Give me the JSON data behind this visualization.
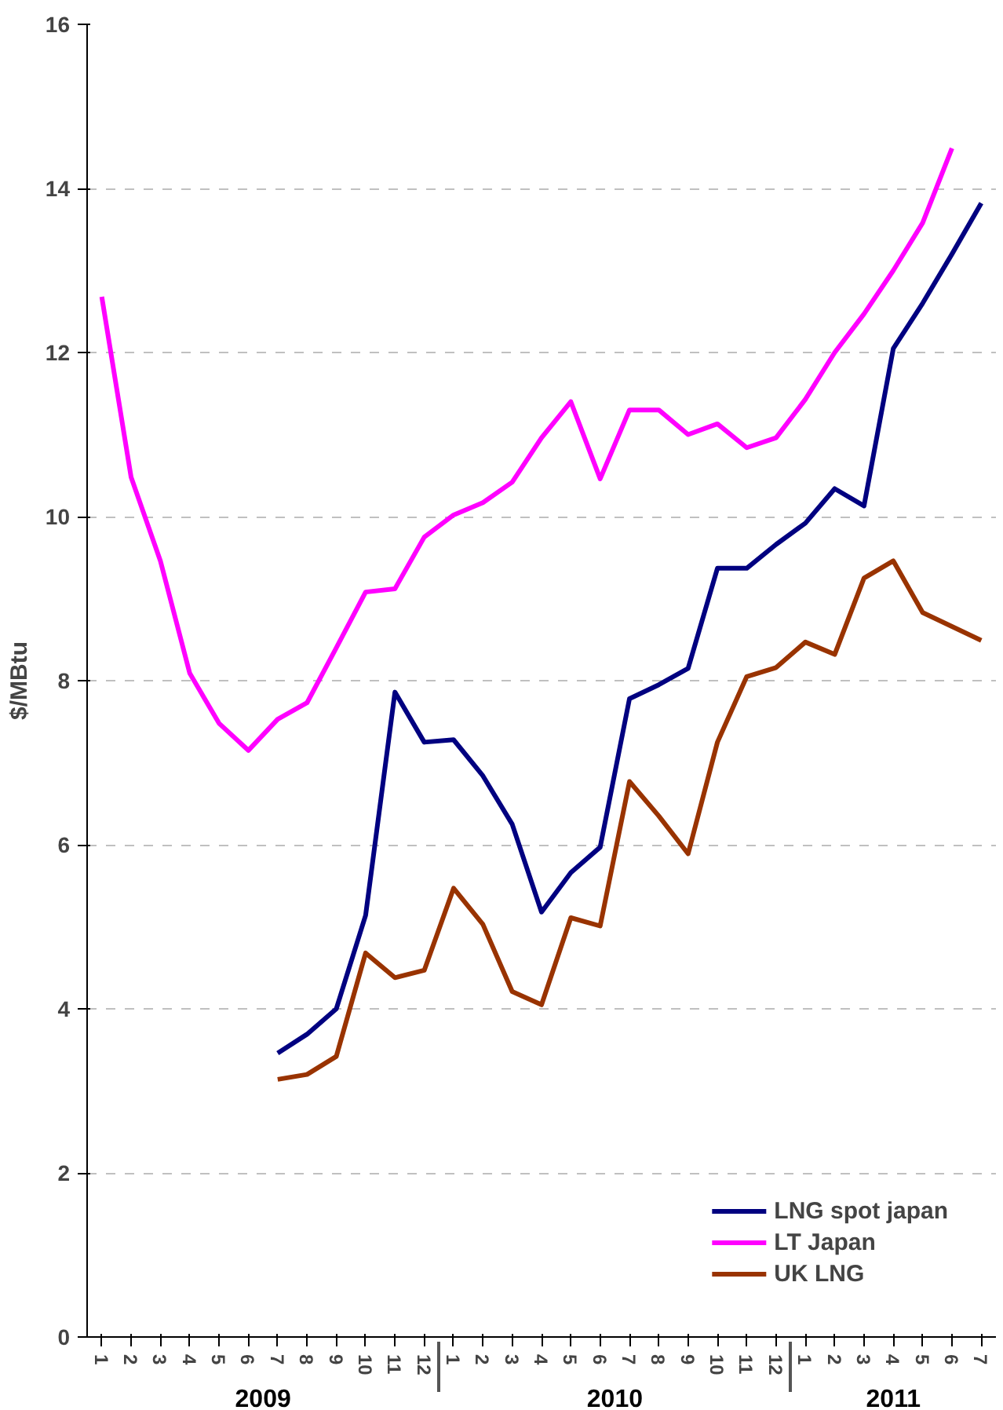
{
  "chart_data": {
    "type": "line",
    "ylabel": "$/MBtu",
    "categories": [
      "1",
      "2",
      "3",
      "4",
      "5",
      "6",
      "7",
      "8",
      "9",
      "10",
      "11",
      "12",
      "1",
      "2",
      "3",
      "4",
      "5",
      "6",
      "7",
      "8",
      "9",
      "10",
      "11",
      "12",
      "1",
      "2",
      "3",
      "4",
      "5",
      "6",
      "7"
    ],
    "annotations": [
      "2009",
      "2010",
      "2011"
    ],
    "series": [
      {
        "name": "LNG spot japan",
        "color": "#000080",
        "values": [
          null,
          null,
          null,
          null,
          null,
          null,
          3.46,
          3.69,
          4.0,
          5.14,
          7.86,
          7.25,
          7.28,
          6.84,
          6.25,
          5.18,
          5.66,
          5.97,
          7.78,
          7.95,
          8.15,
          9.37,
          9.37,
          9.66,
          9.92,
          10.34,
          10.13,
          12.05,
          12.6,
          13.2,
          13.82
        ]
      },
      {
        "name": "LT Japan",
        "color": "#ff00ff",
        "values": [
          12.68,
          10.48,
          9.46,
          8.09,
          7.48,
          7.15,
          7.53,
          7.73,
          8.4,
          9.08,
          9.12,
          9.75,
          10.02,
          10.17,
          10.42,
          10.96,
          11.4,
          10.46,
          11.3,
          11.3,
          11.0,
          11.13,
          10.84,
          10.96,
          11.43,
          12.0,
          12.47,
          13.0,
          13.58,
          14.49,
          null
        ]
      },
      {
        "name": "UK LNG",
        "color": "#993300",
        "values": [
          null,
          null,
          null,
          null,
          null,
          null,
          3.14,
          3.2,
          3.42,
          4.68,
          4.38,
          4.47,
          5.47,
          5.03,
          4.21,
          4.05,
          5.11,
          5.01,
          6.77,
          6.35,
          5.89,
          7.25,
          8.05,
          8.16,
          8.47,
          8.32,
          9.25,
          9.46,
          8.83,
          8.66,
          8.49
        ]
      }
    ],
    "ylim": [
      0,
      16
    ],
    "yticks": [
      0,
      2,
      4,
      6,
      8,
      10,
      12,
      14,
      16
    ],
    "grid": "y",
    "legend": "bottom right",
    "line_style": "solid",
    "marker": "none"
  }
}
